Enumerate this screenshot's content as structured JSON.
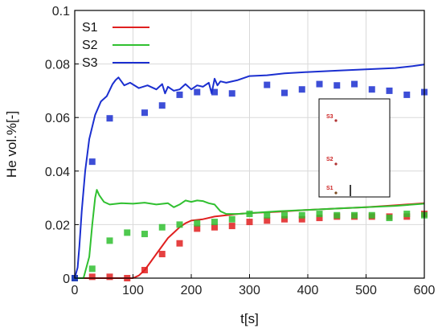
{
  "chart_data": {
    "type": "line",
    "title": "",
    "xlabel": "t[s]",
    "ylabel": "He vol.%[-]",
    "xlim": [
      0,
      600
    ],
    "ylim": [
      0,
      0.1
    ],
    "xticks": [
      "0",
      "100",
      "200",
      "300",
      "400",
      "500",
      "600"
    ],
    "yticks": [
      "0",
      "0.02",
      "0.04",
      "0.06",
      "0.08",
      "0.1"
    ],
    "grid": true,
    "legend_position": "top-left",
    "series": [
      {
        "name": "S1",
        "color": "#e02020",
        "line": [
          [
            0,
            0
          ],
          [
            20,
            0
          ],
          [
            60,
            0
          ],
          [
            90,
            0
          ],
          [
            100,
            0
          ],
          [
            110,
            0.001
          ],
          [
            120,
            0.003
          ],
          [
            130,
            0.006
          ],
          [
            140,
            0.009
          ],
          [
            150,
            0.012
          ],
          [
            160,
            0.015
          ],
          [
            170,
            0.017
          ],
          [
            180,
            0.019
          ],
          [
            190,
            0.0205
          ],
          [
            200,
            0.0215
          ],
          [
            220,
            0.022
          ],
          [
            240,
            0.023
          ],
          [
            260,
            0.0235
          ],
          [
            280,
            0.024
          ],
          [
            300,
            0.0243
          ],
          [
            350,
            0.0248
          ],
          [
            400,
            0.0255
          ],
          [
            450,
            0.026
          ],
          [
            500,
            0.0265
          ],
          [
            550,
            0.0272
          ],
          [
            600,
            0.028
          ]
        ],
        "points": [
          [
            0,
            0
          ],
          [
            30,
            0.0005
          ],
          [
            60,
            0.0005
          ],
          [
            90,
            0
          ],
          [
            120,
            0.003
          ],
          [
            150,
            0.009
          ],
          [
            180,
            0.013
          ],
          [
            210,
            0.0185
          ],
          [
            240,
            0.019
          ],
          [
            270,
            0.0195
          ],
          [
            300,
            0.021
          ],
          [
            330,
            0.0215
          ],
          [
            360,
            0.022
          ],
          [
            390,
            0.022
          ],
          [
            420,
            0.0225
          ],
          [
            450,
            0.023
          ],
          [
            480,
            0.023
          ],
          [
            510,
            0.023
          ],
          [
            540,
            0.023
          ],
          [
            570,
            0.023
          ],
          [
            600,
            0.024
          ]
        ]
      },
      {
        "name": "S2",
        "color": "#30c030",
        "line": [
          [
            0,
            0
          ],
          [
            15,
            0
          ],
          [
            25,
            0.008
          ],
          [
            30,
            0.02
          ],
          [
            35,
            0.03
          ],
          [
            38,
            0.033
          ],
          [
            42,
            0.031
          ],
          [
            50,
            0.0285
          ],
          [
            60,
            0.0275
          ],
          [
            80,
            0.028
          ],
          [
            100,
            0.0278
          ],
          [
            120,
            0.0282
          ],
          [
            140,
            0.0275
          ],
          [
            160,
            0.028
          ],
          [
            170,
            0.0265
          ],
          [
            180,
            0.0275
          ],
          [
            190,
            0.029
          ],
          [
            200,
            0.0285
          ],
          [
            210,
            0.029
          ],
          [
            220,
            0.0288
          ],
          [
            230,
            0.028
          ],
          [
            240,
            0.0275
          ],
          [
            250,
            0.025
          ],
          [
            260,
            0.024
          ],
          [
            280,
            0.024
          ],
          [
            300,
            0.0243
          ],
          [
            350,
            0.025
          ],
          [
            400,
            0.0255
          ],
          [
            450,
            0.026
          ],
          [
            500,
            0.0265
          ],
          [
            550,
            0.027
          ],
          [
            600,
            0.0278
          ]
        ],
        "points": [
          [
            0,
            0
          ],
          [
            30,
            0.0035
          ],
          [
            60,
            0.014
          ],
          [
            90,
            0.017
          ],
          [
            120,
            0.0165
          ],
          [
            150,
            0.019
          ],
          [
            180,
            0.02
          ],
          [
            210,
            0.0205
          ],
          [
            240,
            0.021
          ],
          [
            270,
            0.022
          ],
          [
            300,
            0.024
          ],
          [
            330,
            0.0235
          ],
          [
            360,
            0.0235
          ],
          [
            390,
            0.0235
          ],
          [
            420,
            0.024
          ],
          [
            450,
            0.0235
          ],
          [
            480,
            0.0235
          ],
          [
            510,
            0.0235
          ],
          [
            540,
            0.0225
          ],
          [
            570,
            0.024
          ],
          [
            600,
            0.0235
          ]
        ]
      },
      {
        "name": "S3",
        "color": "#1b2fd0",
        "line": [
          [
            0,
            0
          ],
          [
            5,
            0.004
          ],
          [
            8,
            0.012
          ],
          [
            12,
            0.025
          ],
          [
            18,
            0.04
          ],
          [
            25,
            0.052
          ],
          [
            35,
            0.061
          ],
          [
            45,
            0.066
          ],
          [
            55,
            0.068
          ],
          [
            65,
            0.0725
          ],
          [
            70,
            0.074
          ],
          [
            75,
            0.075
          ],
          [
            80,
            0.0735
          ],
          [
            85,
            0.072
          ],
          [
            95,
            0.073
          ],
          [
            110,
            0.071
          ],
          [
            125,
            0.072
          ],
          [
            140,
            0.0705
          ],
          [
            150,
            0.0725
          ],
          [
            155,
            0.069
          ],
          [
            160,
            0.0715
          ],
          [
            170,
            0.07
          ],
          [
            180,
            0.0705
          ],
          [
            190,
            0.0725
          ],
          [
            200,
            0.0705
          ],
          [
            210,
            0.072
          ],
          [
            220,
            0.0715
          ],
          [
            230,
            0.073
          ],
          [
            235,
            0.069
          ],
          [
            240,
            0.0745
          ],
          [
            245,
            0.072
          ],
          [
            250,
            0.0735
          ],
          [
            260,
            0.073
          ],
          [
            280,
            0.074
          ],
          [
            300,
            0.0755
          ],
          [
            330,
            0.0758
          ],
          [
            360,
            0.0765
          ],
          [
            400,
            0.077
          ],
          [
            450,
            0.0775
          ],
          [
            500,
            0.078
          ],
          [
            550,
            0.0785
          ],
          [
            580,
            0.0792
          ],
          [
            600,
            0.0798
          ]
        ],
        "points": [
          [
            0,
            0
          ],
          [
            30,
            0.0435
          ],
          [
            60,
            0.0597
          ],
          [
            120,
            0.0618
          ],
          [
            150,
            0.0645
          ],
          [
            180,
            0.0685
          ],
          [
            210,
            0.0695
          ],
          [
            240,
            0.0695
          ],
          [
            270,
            0.069
          ],
          [
            330,
            0.0722
          ],
          [
            360,
            0.0692
          ],
          [
            390,
            0.0705
          ],
          [
            420,
            0.0725
          ],
          [
            450,
            0.072
          ],
          [
            480,
            0.0725
          ],
          [
            510,
            0.0705
          ],
          [
            540,
            0.07
          ],
          [
            570,
            0.0685
          ],
          [
            600,
            0.0695
          ]
        ]
      }
    ],
    "inset": {
      "labels": [
        "S3",
        "S2",
        "S1"
      ]
    }
  }
}
